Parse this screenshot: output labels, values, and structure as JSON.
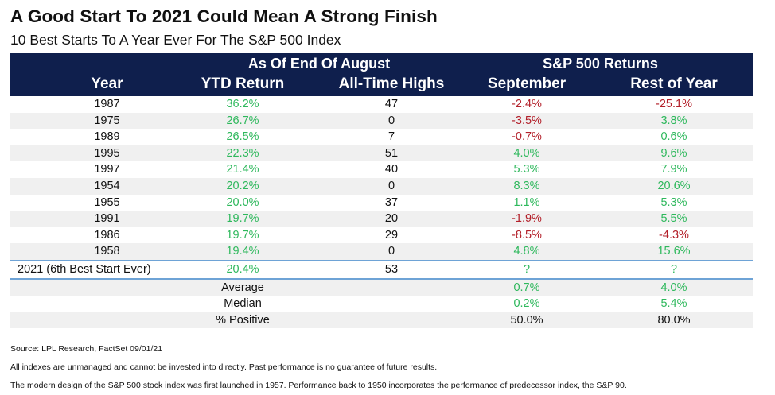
{
  "title": "A Good Start To 2021 Could Mean A Strong Finish",
  "subtitle": "10 Best Starts To A Year Ever For The S&P 500 Index",
  "colors": {
    "header_bg": "#0f1f4d",
    "positive": "#2eb85c",
    "negative": "#b3202a",
    "separator": "#6ea3d6",
    "alt_row": "#f0f0f0"
  },
  "header": {
    "group_left": "As Of End Of August",
    "group_right": "S&P 500 Returns",
    "columns": [
      "Year",
      "YTD Return",
      "All-Time Highs",
      "September",
      "Rest of Year"
    ]
  },
  "rows": [
    {
      "year": "1987",
      "ytd": "36.2%",
      "ath": "47",
      "sep": "-2.4%",
      "rest": "-25.1%",
      "sep_sign": "neg",
      "rest_sign": "neg"
    },
    {
      "year": "1975",
      "ytd": "26.7%",
      "ath": "0",
      "sep": "-3.5%",
      "rest": "3.8%",
      "sep_sign": "neg",
      "rest_sign": "pos"
    },
    {
      "year": "1989",
      "ytd": "26.5%",
      "ath": "7",
      "sep": "-0.7%",
      "rest": "0.6%",
      "sep_sign": "neg",
      "rest_sign": "pos"
    },
    {
      "year": "1995",
      "ytd": "22.3%",
      "ath": "51",
      "sep": "4.0%",
      "rest": "9.6%",
      "sep_sign": "pos",
      "rest_sign": "pos"
    },
    {
      "year": "1997",
      "ytd": "21.4%",
      "ath": "40",
      "sep": "5.3%",
      "rest": "7.9%",
      "sep_sign": "pos",
      "rest_sign": "pos"
    },
    {
      "year": "1954",
      "ytd": "20.2%",
      "ath": "0",
      "sep": "8.3%",
      "rest": "20.6%",
      "sep_sign": "pos",
      "rest_sign": "pos"
    },
    {
      "year": "1955",
      "ytd": "20.0%",
      "ath": "37",
      "sep": "1.1%",
      "rest": "5.3%",
      "sep_sign": "pos",
      "rest_sign": "pos"
    },
    {
      "year": "1991",
      "ytd": "19.7%",
      "ath": "20",
      "sep": "-1.9%",
      "rest": "5.5%",
      "sep_sign": "neg",
      "rest_sign": "pos"
    },
    {
      "year": "1986",
      "ytd": "19.7%",
      "ath": "29",
      "sep": "-8.5%",
      "rest": "-4.3%",
      "sep_sign": "neg",
      "rest_sign": "neg"
    },
    {
      "year": "1958",
      "ytd": "19.4%",
      "ath": "0",
      "sep": "4.8%",
      "rest": "15.6%",
      "sep_sign": "pos",
      "rest_sign": "pos"
    }
  ],
  "current": {
    "year": "2021 (6th Best Start Ever)",
    "ytd": "20.4%",
    "ath": "53",
    "sep": "?",
    "rest": "?"
  },
  "summary": [
    {
      "label": "Average",
      "sep": "0.7%",
      "rest": "4.0%",
      "colored": true
    },
    {
      "label": "Median",
      "sep": "0.2%",
      "rest": "5.4%",
      "colored": true
    },
    {
      "label": "% Positive",
      "sep": "50.0%",
      "rest": "80.0%",
      "colored": false
    }
  ],
  "footnotes": [
    "Source: LPL Research, FactSet 09/01/21",
    "All indexes are unmanaged and cannot be invested into directly. Past performance is no guarantee of future results.",
    "The modern design of the S&P 500 stock index was first launched in 1957. Performance back to 1950 incorporates the performance of predecessor index, the S&P 90."
  ]
}
